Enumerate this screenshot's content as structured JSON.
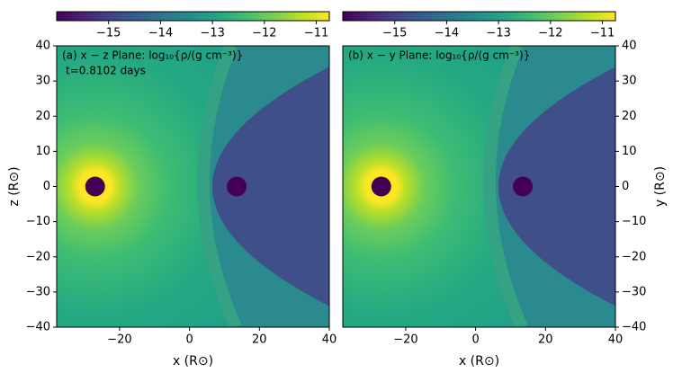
{
  "chart_data": [
    {
      "type": "heatmap",
      "title": "(a) x − z Plane: log₁₀{ρ/(g cm⁻³)}",
      "annotation": "t=0.8102 days",
      "xlabel": "x (R⊙)",
      "ylabel": "z (R⊙)",
      "yaxis_side": "left",
      "colormap": "viridis",
      "xlim": [
        -38,
        40
      ],
      "xticks": [
        {
          "value": -20,
          "label": "−20"
        },
        0,
        20,
        40
      ],
      "ylim": [
        -40,
        40
      ],
      "yticks": [
        {
          "value": -40,
          "label": "−40"
        },
        {
          "value": -30,
          "label": "−30"
        },
        {
          "value": -20,
          "label": "−20"
        },
        {
          "value": -10,
          "label": "−10"
        },
        0,
        10,
        20,
        30,
        40
      ],
      "clim": [
        -16,
        -10.75
      ],
      "cticks": [
        {
          "value": -15,
          "label": "−15"
        },
        {
          "value": -14,
          "label": "−14"
        },
        {
          "value": -13,
          "label": "−13"
        },
        {
          "value": -12,
          "label": "−12"
        },
        {
          "value": -11,
          "label": "−11"
        }
      ],
      "stars": {
        "x": [
          -27,
          13.5
        ],
        "y": [
          0,
          0
        ]
      }
    },
    {
      "type": "heatmap",
      "title": "(b) x − y Plane: log₁₀{ρ/(g cm⁻³)}",
      "xlabel": "x (R⊙)",
      "ylabel": "y (R⊙)",
      "yaxis_side": "right",
      "colormap": "viridis",
      "xlim": [
        -38,
        40
      ],
      "xticks": [
        {
          "value": -20,
          "label": "−20"
        },
        0,
        20,
        40
      ],
      "ylim": [
        -40,
        40
      ],
      "yticks": [
        {
          "value": -40,
          "label": "−40"
        },
        {
          "value": -30,
          "label": "−30"
        },
        {
          "value": -20,
          "label": "−20"
        },
        {
          "value": -10,
          "label": "−10"
        },
        0,
        10,
        20,
        30,
        40
      ],
      "clim": [
        -16,
        -10.75
      ],
      "cticks": [
        {
          "value": -15,
          "label": "−15"
        },
        {
          "value": -14,
          "label": "−14"
        },
        {
          "value": -13,
          "label": "−13"
        },
        {
          "value": -12,
          "label": "−12"
        },
        {
          "value": -11,
          "label": "−11"
        }
      ],
      "stars": {
        "x": [
          -27,
          13.5
        ],
        "y": [
          0,
          0
        ]
      }
    }
  ]
}
